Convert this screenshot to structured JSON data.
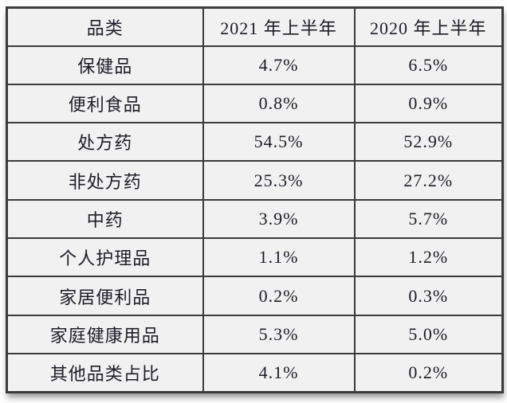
{
  "table": {
    "columns": [
      "品类",
      "2021 年上半年",
      "2020 年上半年"
    ],
    "rows": [
      [
        "保健品",
        "4.7%",
        "6.5%"
      ],
      [
        "便利食品",
        "0.8%",
        "0.9%"
      ],
      [
        "处方药",
        "54.5%",
        "52.9%"
      ],
      [
        "非处方药",
        "25.3%",
        "27.2%"
      ],
      [
        "中药",
        "3.9%",
        "5.7%"
      ],
      [
        "个人护理品",
        "1.1%",
        "1.2%"
      ],
      [
        "家居便利品",
        "0.2%",
        "0.3%"
      ],
      [
        "家庭健康用品",
        "5.3%",
        "5.0%"
      ],
      [
        "其他品类占比",
        "4.1%",
        "0.2%"
      ]
    ]
  },
  "chart_data": {
    "type": "table",
    "title": "",
    "columns": [
      "品类",
      "2021 年上半年",
      "2020 年上半年"
    ],
    "categories": [
      "保健品",
      "便利食品",
      "处方药",
      "非处方药",
      "中药",
      "个人护理品",
      "家居便利品",
      "家庭健康用品",
      "其他品类占比"
    ],
    "series": [
      {
        "name": "2021 年上半年",
        "values": [
          4.7,
          0.8,
          54.5,
          25.3,
          3.9,
          1.1,
          0.2,
          5.3,
          4.1
        ]
      },
      {
        "name": "2020 年上半年",
        "values": [
          6.5,
          0.9,
          52.9,
          27.2,
          5.7,
          1.2,
          0.3,
          5.0,
          0.2
        ]
      }
    ],
    "unit": "%"
  },
  "colors": {
    "cell_background": "#f1f1f2",
    "border": "#3b3b3b",
    "text": "#1d1d29",
    "page_background": "#fdfdfd"
  }
}
